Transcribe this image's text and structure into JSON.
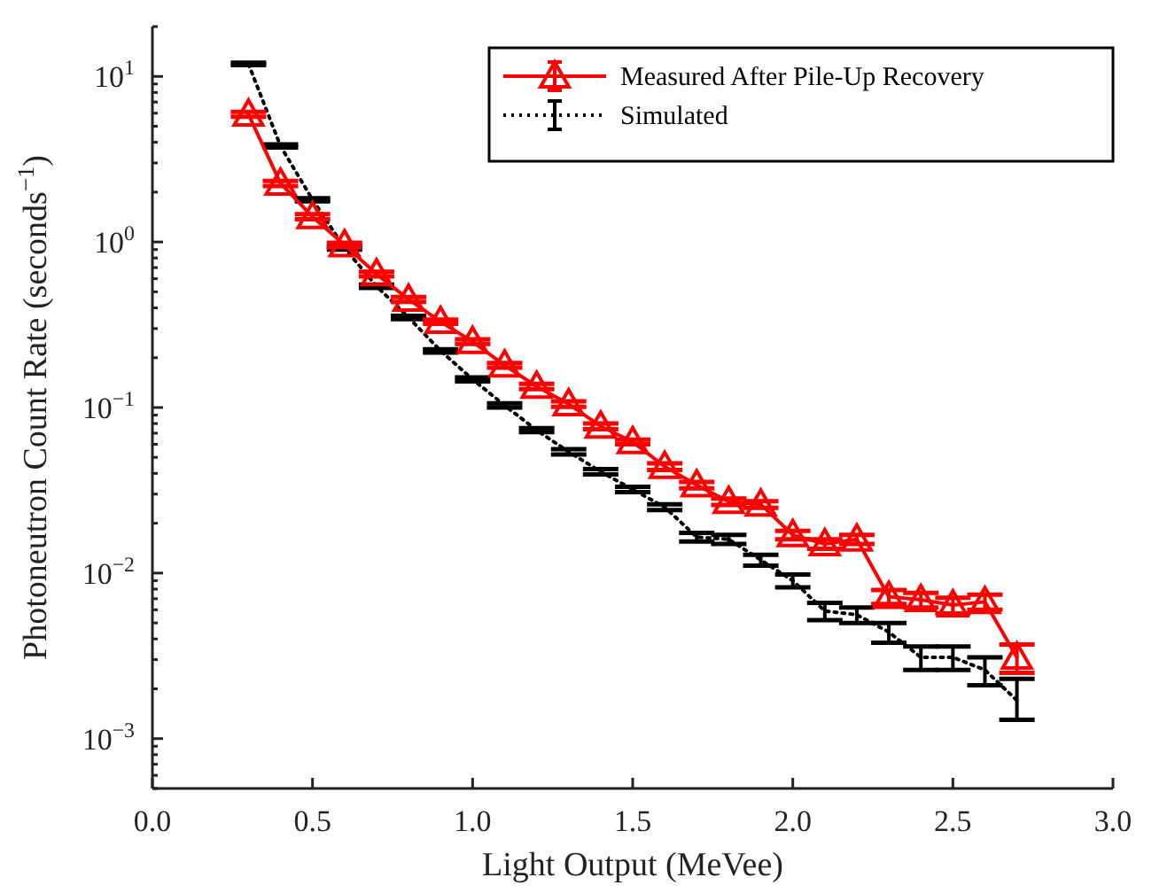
{
  "chart_data": {
    "type": "line",
    "xlabel": "Light Output (MeVee)",
    "ylabel": "Photoneutron Count Rate (seconds$^{−1}$)",
    "x": [
      0.3,
      0.4,
      0.5,
      0.6,
      0.7,
      0.8,
      0.9,
      1.0,
      1.1,
      1.2,
      1.3,
      1.4,
      1.5,
      1.6,
      1.7,
      1.8,
      1.9,
      2.0,
      2.1,
      2.2,
      2.3,
      2.4,
      2.5,
      2.6,
      2.7
    ],
    "series": [
      {
        "name": "Measured After Pile-Up Recovery",
        "color": "#ff0000",
        "marker": "triangle",
        "line_style": "solid",
        "values": [
          5.9,
          2.26,
          1.42,
          0.96,
          0.64,
          0.45,
          0.33,
          0.25,
          0.18,
          0.134,
          0.105,
          0.077,
          0.062,
          0.044,
          0.034,
          0.027,
          0.026,
          0.017,
          0.015,
          0.016,
          0.0072,
          0.0069,
          0.0064,
          0.0067,
          0.0031
        ],
        "errors": [
          0.2,
          0.08,
          0.05,
          0.03,
          0.02,
          0.015,
          0.01,
          0.008,
          0.006,
          0.005,
          0.004,
          0.003,
          0.002,
          0.002,
          0.0015,
          0.0012,
          0.0012,
          0.001,
          0.001,
          0.001,
          0.0007,
          0.0007,
          0.0007,
          0.0007,
          0.0006
        ]
      },
      {
        "name": "Simulated",
        "color": "#000000",
        "marker": "none",
        "line_style": "dotted",
        "values": [
          11.9,
          3.8,
          1.8,
          0.92,
          0.54,
          0.35,
          0.22,
          0.148,
          0.103,
          0.073,
          0.054,
          0.041,
          0.032,
          0.025,
          0.0165,
          0.016,
          0.012,
          0.009,
          0.0059,
          0.0056,
          0.0044,
          0.0031,
          0.0031,
          0.0026,
          0.0017
        ],
        "errors": [
          0.2,
          0.08,
          0.04,
          0.02,
          0.012,
          0.008,
          0.005,
          0.004,
          0.003,
          0.002,
          0.002,
          0.0015,
          0.0012,
          0.001,
          0.001,
          0.001,
          0.0009,
          0.0008,
          0.0007,
          0.0006,
          0.0006,
          0.0005,
          0.0005,
          0.0005,
          [
            0.0013,
            0.0023
          ]
        ]
      }
    ],
    "xlim": [
      0,
      3
    ],
    "xticks": [
      {
        "value": 0,
        "label": "0.0"
      },
      {
        "value": 0.5,
        "label": "0.5"
      },
      {
        "value": 1,
        "label": "1.0"
      },
      {
        "value": 1.5,
        "label": "1.5"
      },
      {
        "value": 2,
        "label": "2.0"
      },
      {
        "value": 2.5,
        "label": "2.5"
      },
      {
        "value": 3,
        "label": "3.0"
      }
    ],
    "ylim": [
      0.0005,
      20
    ],
    "yticks": [
      {
        "value": 0.001,
        "label": "10$^{−3}$"
      },
      {
        "value": 0.01,
        "label": "10$^{−2}$"
      },
      {
        "value": 0.1,
        "label": "10$^{−1}$"
      },
      {
        "value": 1,
        "label": "10$^{0}$"
      },
      {
        "value": 10,
        "label": "10$^{1}$"
      }
    ],
    "log": "y",
    "legend": "top right",
    "grid": false
  }
}
